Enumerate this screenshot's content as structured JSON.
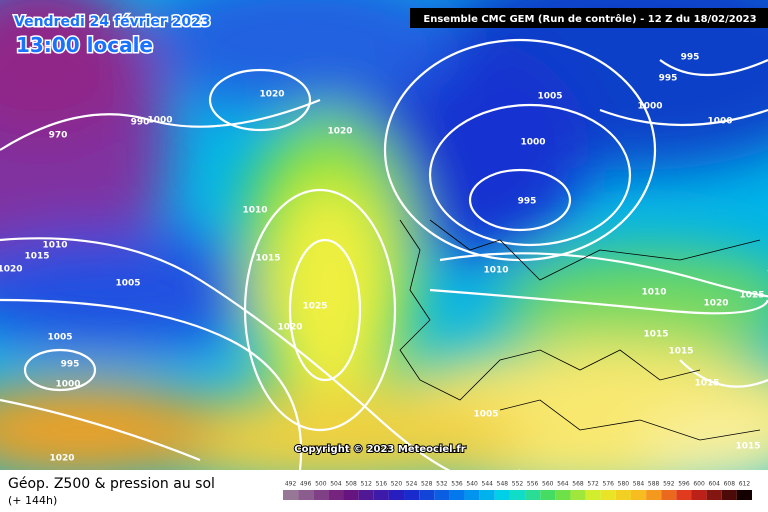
{
  "header": {
    "date": "Vendredi 24 février 2023",
    "time": "13:00 locale",
    "run": "Ensemble CMC GEM  (Run de contrôle)  -  12 Z du 18/02/2023"
  },
  "map": {
    "isobar_labels": [
      995,
      995,
      1000,
      1000,
      1005,
      1000,
      995,
      1020,
      1020,
      970,
      990,
      1000,
      1010,
      1015,
      1025,
      1020,
      1010,
      1015,
      1020,
      1005,
      1005,
      995,
      1000,
      1010,
      1010,
      1025,
      1020,
      1015,
      1015,
      1015,
      1005,
      1020,
      1015
    ]
  },
  "copyright": "Copyright © 2023 Meteociel.fr",
  "footer": {
    "title": "Géop. Z500 & pression au sol",
    "lead": "(+ 144h)"
  },
  "scale": {
    "labels": [
      492,
      496,
      500,
      504,
      508,
      512,
      516,
      520,
      524,
      528,
      532,
      536,
      540,
      544,
      548,
      552,
      556,
      560,
      564,
      568,
      572,
      576,
      580,
      584,
      588,
      592,
      596,
      600,
      604,
      608,
      612
    ]
  }
}
